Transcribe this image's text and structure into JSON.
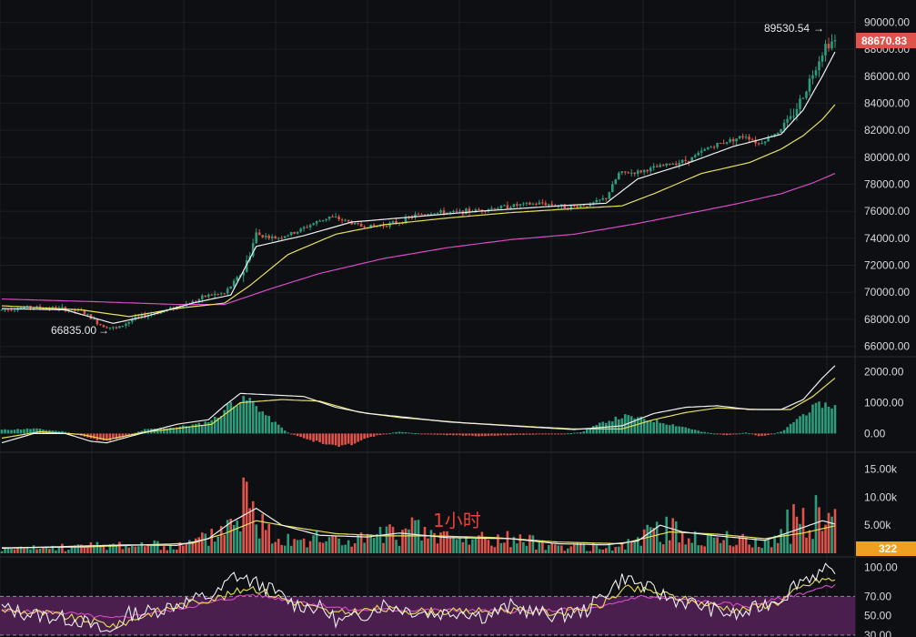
{
  "watermark": "1小时",
  "colors": {
    "background": "#0d0f12",
    "grid": "#1c1f24",
    "up": "#2c9c7b",
    "down": "#e0534b",
    "ma_fast": "#f0f0f0",
    "ma_mid": "#e8e05a",
    "ma_slow": "#d84bc6",
    "macd_dif": "#f0f0f0",
    "macd_dea": "#e8e05a",
    "rsi_band": "#4a1f4e",
    "price_badge": "#e0534b",
    "volume_badge": "#f0a020"
  },
  "chart_data": [
    {
      "id": "price",
      "type": "candlestick",
      "y_ticks": [
        "90000.00",
        "88000.00",
        "86000.00",
        "84000.00",
        "82000.00",
        "80000.00",
        "78000.00",
        "76000.00",
        "74000.00",
        "72000.00",
        "70000.00",
        "68000.00",
        "66000.00"
      ],
      "ylim": [
        65500,
        90700
      ],
      "high_label": "89530.54",
      "low_label": "66835.00",
      "last_price": "88670.83",
      "keypoints": [
        [
          0,
          68700
        ],
        [
          8,
          68900
        ],
        [
          18,
          68800
        ],
        [
          25,
          68600
        ],
        [
          31,
          67600
        ],
        [
          36,
          67300
        ],
        [
          42,
          68100
        ],
        [
          52,
          68700
        ],
        [
          60,
          69300
        ],
        [
          65,
          69800
        ],
        [
          70,
          69900
        ],
        [
          76,
          71600
        ],
        [
          80,
          74300
        ],
        [
          86,
          74000
        ],
        [
          92,
          74400
        ],
        [
          97,
          75000
        ],
        [
          103,
          75600
        ],
        [
          108,
          75300
        ],
        [
          113,
          74900
        ],
        [
          118,
          74900
        ],
        [
          125,
          75200
        ],
        [
          130,
          75700
        ],
        [
          135,
          75900
        ],
        [
          142,
          75900
        ],
        [
          150,
          76100
        ],
        [
          160,
          76400
        ],
        [
          170,
          76600
        ],
        [
          178,
          76300
        ],
        [
          185,
          76500
        ],
        [
          190,
          77000
        ],
        [
          194,
          78800
        ],
        [
          200,
          78900
        ],
        [
          210,
          79500
        ],
        [
          216,
          79800
        ],
        [
          222,
          80700
        ],
        [
          228,
          81200
        ],
        [
          234,
          81600
        ],
        [
          238,
          81000
        ],
        [
          244,
          81900
        ],
        [
          248,
          82800
        ],
        [
          252,
          84600
        ],
        [
          256,
          86800
        ],
        [
          259,
          88300
        ],
        [
          262,
          88670.83
        ]
      ],
      "ma_fast": [
        [
          0,
          68800
        ],
        [
          20,
          68700
        ],
        [
          35,
          67700
        ],
        [
          45,
          68200
        ],
        [
          60,
          69200
        ],
        [
          72,
          69800
        ],
        [
          80,
          73400
        ],
        [
          95,
          74200
        ],
        [
          110,
          75200
        ],
        [
          130,
          75600
        ],
        [
          150,
          76000
        ],
        [
          175,
          76400
        ],
        [
          190,
          76600
        ],
        [
          200,
          78400
        ],
        [
          215,
          79500
        ],
        [
          230,
          80800
        ],
        [
          245,
          81700
        ],
        [
          252,
          83500
        ],
        [
          258,
          86000
        ],
        [
          262,
          87800
        ]
      ],
      "ma_mid": [
        [
          0,
          69000
        ],
        [
          25,
          68700
        ],
        [
          40,
          68200
        ],
        [
          55,
          68800
        ],
        [
          70,
          69200
        ],
        [
          78,
          70500
        ],
        [
          90,
          72800
        ],
        [
          105,
          74300
        ],
        [
          120,
          75000
        ],
        [
          140,
          75500
        ],
        [
          160,
          75900
        ],
        [
          180,
          76200
        ],
        [
          195,
          76400
        ],
        [
          205,
          77300
        ],
        [
          220,
          78800
        ],
        [
          235,
          79600
        ],
        [
          245,
          80600
        ],
        [
          252,
          81600
        ],
        [
          258,
          82800
        ],
        [
          262,
          83900
        ]
      ],
      "ma_slow": [
        [
          0,
          69500
        ],
        [
          30,
          69300
        ],
        [
          55,
          69100
        ],
        [
          70,
          69100
        ],
        [
          85,
          70300
        ],
        [
          100,
          71400
        ],
        [
          120,
          72500
        ],
        [
          140,
          73300
        ],
        [
          160,
          73900
        ],
        [
          180,
          74300
        ],
        [
          200,
          75100
        ],
        [
          215,
          75800
        ],
        [
          230,
          76500
        ],
        [
          245,
          77300
        ],
        [
          255,
          78100
        ],
        [
          262,
          78800
        ]
      ]
    },
    {
      "id": "macd",
      "type": "macd",
      "y_ticks": [
        "2000.00",
        "1000.00",
        "0.00"
      ],
      "ylim": [
        -400,
        2400
      ],
      "hist_keypoints": [
        [
          0,
          120
        ],
        [
          10,
          160
        ],
        [
          20,
          60
        ],
        [
          28,
          -150
        ],
        [
          32,
          -260
        ],
        [
          38,
          -120
        ],
        [
          45,
          130
        ],
        [
          55,
          210
        ],
        [
          63,
          320
        ],
        [
          68,
          540
        ],
        [
          72,
          1000
        ],
        [
          78,
          1100
        ],
        [
          84,
          500
        ],
        [
          90,
          30
        ],
        [
          96,
          -180
        ],
        [
          103,
          -380
        ],
        [
          108,
          -420
        ],
        [
          113,
          -200
        ],
        [
          118,
          -60
        ],
        [
          125,
          60
        ],
        [
          135,
          -30
        ],
        [
          150,
          -80
        ],
        [
          165,
          -40
        ],
        [
          175,
          -20
        ],
        [
          182,
          40
        ],
        [
          190,
          400
        ],
        [
          196,
          560
        ],
        [
          205,
          420
        ],
        [
          215,
          200
        ],
        [
          220,
          60
        ],
        [
          228,
          -60
        ],
        [
          234,
          40
        ],
        [
          238,
          -90
        ],
        [
          242,
          -30
        ],
        [
          246,
          100
        ],
        [
          250,
          480
        ],
        [
          255,
          820
        ],
        [
          258,
          960
        ],
        [
          262,
          880
        ]
      ],
      "dif": [
        [
          0,
          -300
        ],
        [
          10,
          0
        ],
        [
          20,
          0
        ],
        [
          28,
          -250
        ],
        [
          33,
          -300
        ],
        [
          40,
          -100
        ],
        [
          55,
          300
        ],
        [
          65,
          450
        ],
        [
          70,
          900
        ],
        [
          75,
          1300
        ],
        [
          85,
          1250
        ],
        [
          95,
          1200
        ],
        [
          105,
          850
        ],
        [
          115,
          650
        ],
        [
          125,
          550
        ],
        [
          140,
          380
        ],
        [
          160,
          250
        ],
        [
          180,
          130
        ],
        [
          195,
          250
        ],
        [
          205,
          650
        ],
        [
          215,
          850
        ],
        [
          225,
          900
        ],
        [
          235,
          780
        ],
        [
          245,
          780
        ],
        [
          252,
          1100
        ],
        [
          258,
          1800
        ],
        [
          262,
          2200
        ]
      ],
      "dea": [
        [
          0,
          -150
        ],
        [
          12,
          60
        ],
        [
          25,
          -30
        ],
        [
          33,
          -200
        ],
        [
          45,
          50
        ],
        [
          58,
          200
        ],
        [
          66,
          300
        ],
        [
          75,
          1000
        ],
        [
          88,
          1100
        ],
        [
          100,
          1050
        ],
        [
          112,
          700
        ],
        [
          125,
          520
        ],
        [
          145,
          350
        ],
        [
          165,
          230
        ],
        [
          180,
          150
        ],
        [
          195,
          150
        ],
        [
          205,
          450
        ],
        [
          215,
          680
        ],
        [
          225,
          830
        ],
        [
          238,
          780
        ],
        [
          248,
          780
        ],
        [
          255,
          1200
        ],
        [
          262,
          1800
        ]
      ]
    },
    {
      "id": "volume",
      "type": "volume",
      "y_ticks": [
        "15.00k",
        "10.00k",
        "5.00k"
      ],
      "ylim": [
        0,
        17500
      ],
      "last_value": "322",
      "bar_keypoints": [
        [
          0,
          800
        ],
        [
          20,
          1200
        ],
        [
          40,
          1800
        ],
        [
          55,
          1300
        ],
        [
          65,
          3000
        ],
        [
          72,
          6500
        ],
        [
          76,
          11500
        ],
        [
          80,
          7000
        ],
        [
          86,
          4000
        ],
        [
          95,
          3000
        ],
        [
          110,
          2500
        ],
        [
          120,
          3500
        ],
        [
          130,
          4500
        ],
        [
          145,
          2500
        ],
        [
          160,
          2800
        ],
        [
          175,
          1500
        ],
        [
          190,
          1200
        ],
        [
          200,
          2000
        ],
        [
          205,
          6000
        ],
        [
          212,
          4000
        ],
        [
          222,
          3000
        ],
        [
          232,
          2500
        ],
        [
          242,
          2000
        ],
        [
          250,
          6500
        ],
        [
          256,
          7500
        ],
        [
          262,
          6000
        ]
      ],
      "spikes": [
        [
          76,
          13500
        ],
        [
          84,
          5200
        ],
        [
          124,
          2400
        ],
        [
          151,
          3800
        ],
        [
          247,
          7800
        ],
        [
          257,
          8200
        ],
        [
          260,
          7200
        ]
      ],
      "ma_fast": [
        [
          0,
          900
        ],
        [
          20,
          1200
        ],
        [
          40,
          1500
        ],
        [
          55,
          1400
        ],
        [
          65,
          2600
        ],
        [
          72,
          5500
        ],
        [
          80,
          8000
        ],
        [
          88,
          5000
        ],
        [
          100,
          3200
        ],
        [
          115,
          2900
        ],
        [
          125,
          3600
        ],
        [
          140,
          2800
        ],
        [
          160,
          2600
        ],
        [
          175,
          1700
        ],
        [
          190,
          1500
        ],
        [
          200,
          2200
        ],
        [
          207,
          5000
        ],
        [
          214,
          3800
        ],
        [
          225,
          3100
        ],
        [
          240,
          2300
        ],
        [
          250,
          4200
        ],
        [
          258,
          5800
        ],
        [
          262,
          5200
        ]
      ],
      "ma_mid": [
        [
          0,
          1000
        ],
        [
          25,
          1100
        ],
        [
          45,
          1500
        ],
        [
          60,
          1800
        ],
        [
          70,
          3500
        ],
        [
          80,
          5800
        ],
        [
          90,
          4800
        ],
        [
          105,
          3500
        ],
        [
          120,
          3100
        ],
        [
          135,
          3100
        ],
        [
          155,
          2800
        ],
        [
          175,
          2000
        ],
        [
          195,
          1700
        ],
        [
          210,
          3800
        ],
        [
          225,
          3400
        ],
        [
          240,
          2600
        ],
        [
          252,
          3600
        ],
        [
          262,
          4900
        ]
      ]
    },
    {
      "id": "rsi",
      "type": "rsi",
      "y_ticks": [
        "100.00",
        "70.00",
        "50.00",
        "30.00"
      ],
      "ylim": [
        28,
        108
      ],
      "band": [
        30,
        70
      ],
      "rsi_fast": [
        [
          0,
          58
        ],
        [
          8,
          52
        ],
        [
          18,
          48
        ],
        [
          25,
          45
        ],
        [
          30,
          36
        ],
        [
          34,
          32
        ],
        [
          40,
          52
        ],
        [
          48,
          55
        ],
        [
          55,
          62
        ],
        [
          62,
          68
        ],
        [
          68,
          73
        ],
        [
          73,
          92
        ],
        [
          78,
          86
        ],
        [
          84,
          78
        ],
        [
          92,
          62
        ],
        [
          100,
          58
        ],
        [
          106,
          44
        ],
        [
          112,
          48
        ],
        [
          120,
          62
        ],
        [
          128,
          56
        ],
        [
          136,
          52
        ],
        [
          145,
          55
        ],
        [
          152,
          49
        ],
        [
          160,
          60
        ],
        [
          168,
          53
        ],
        [
          176,
          50
        ],
        [
          184,
          56
        ],
        [
          190,
          75
        ],
        [
          196,
          90
        ],
        [
          202,
          80
        ],
        [
          210,
          68
        ],
        [
          218,
          62
        ],
        [
          226,
          54
        ],
        [
          232,
          50
        ],
        [
          240,
          62
        ],
        [
          246,
          70
        ],
        [
          250,
          85
        ],
        [
          255,
          92
        ],
        [
          259,
          96
        ],
        [
          262,
          90
        ]
      ],
      "rsi_mid": [
        [
          0,
          56
        ],
        [
          15,
          52
        ],
        [
          28,
          44
        ],
        [
          36,
          40
        ],
        [
          48,
          54
        ],
        [
          60,
          64
        ],
        [
          70,
          70
        ],
        [
          78,
          80
        ],
        [
          90,
          66
        ],
        [
          105,
          52
        ],
        [
          118,
          57
        ],
        [
          130,
          55
        ],
        [
          145,
          54
        ],
        [
          160,
          56
        ],
        [
          175,
          53
        ],
        [
          188,
          60
        ],
        [
          196,
          78
        ],
        [
          205,
          75
        ],
        [
          218,
          64
        ],
        [
          232,
          56
        ],
        [
          244,
          64
        ],
        [
          252,
          80
        ],
        [
          258,
          88
        ],
        [
          262,
          86
        ]
      ],
      "rsi_slow": [
        [
          0,
          55
        ],
        [
          20,
          53
        ],
        [
          35,
          47
        ],
        [
          50,
          54
        ],
        [
          65,
          63
        ],
        [
          78,
          72
        ],
        [
          95,
          64
        ],
        [
          110,
          56
        ],
        [
          130,
          56
        ],
        [
          150,
          55
        ],
        [
          170,
          55
        ],
        [
          188,
          58
        ],
        [
          200,
          70
        ],
        [
          215,
          66
        ],
        [
          235,
          60
        ],
        [
          250,
          72
        ],
        [
          262,
          82
        ]
      ]
    }
  ]
}
